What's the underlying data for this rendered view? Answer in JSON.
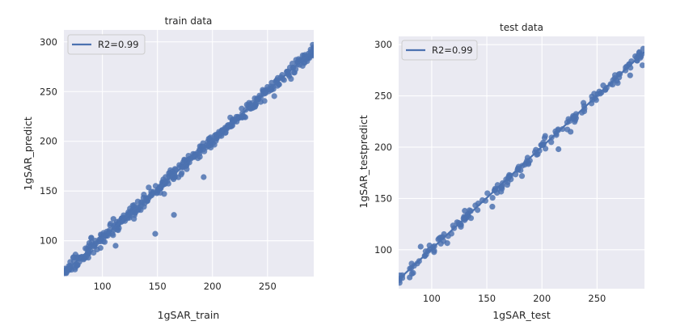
{
  "chart_data": [
    {
      "type": "scatter",
      "title": "train data",
      "xlabel": "1gSAR_train",
      "ylabel": "1gSAR_predict",
      "xlim": [
        65,
        292
      ],
      "ylim": [
        64,
        312
      ],
      "xticks": [
        100,
        150,
        200,
        250
      ],
      "yticks": [
        100,
        150,
        200,
        250,
        300
      ],
      "grid": true,
      "legend": {
        "position": "top-left",
        "entries": [
          "R2=0.99"
        ]
      },
      "fit_line": {
        "label": "R2=0.99",
        "x": [
          65,
          292
        ],
        "y": [
          68,
          292
        ]
      },
      "color": "#4c72b0",
      "outliers": [
        [
          148,
          107
        ],
        [
          165,
          126
        ],
        [
          192,
          164
        ],
        [
          90,
          103
        ],
        [
          112,
          95
        ],
        [
          110,
          122
        ]
      ],
      "points_generated": 420
    },
    {
      "type": "scatter",
      "title": "test data",
      "xlabel": "1gSAR_test",
      "ylabel": "1gSAR_testpredict",
      "xlim": [
        70,
        293
      ],
      "ylim": [
        62,
        308
      ],
      "xticks": [
        100,
        150,
        200,
        250
      ],
      "yticks": [
        100,
        150,
        200,
        250,
        300
      ],
      "grid": true,
      "legend": {
        "position": "top-left",
        "entries": [
          "R2=0.99"
        ]
      },
      "fit_line": {
        "label": "R2=0.99",
        "x": [
          70,
          293
        ],
        "y": [
          71,
          293
        ]
      },
      "color": "#4c72b0",
      "outliers": [
        [
          80,
          73
        ],
        [
          90,
          103
        ],
        [
          155,
          142
        ],
        [
          215,
          198
        ],
        [
          270,
          268
        ],
        [
          280,
          270
        ],
        [
          226,
          215
        ],
        [
          130,
          138
        ]
      ],
      "points_generated": 180
    }
  ]
}
